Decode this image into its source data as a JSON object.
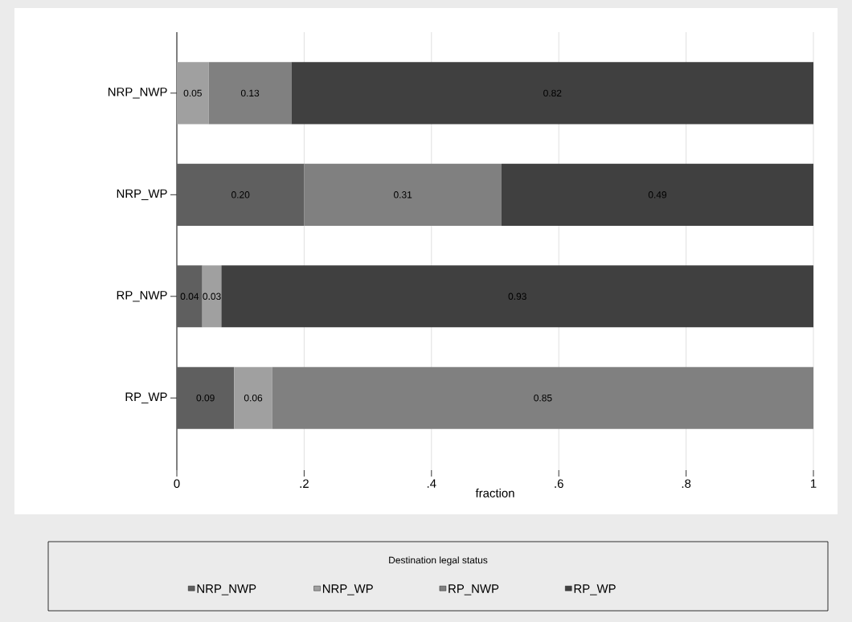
{
  "chart_data": {
    "type": "bar",
    "orientation": "horizontal",
    "stacked": true,
    "categories": [
      "NRP_NWP",
      "NRP_WP",
      "RP_NWP",
      "RP_WP"
    ],
    "series": [
      {
        "name": "NRP_NWP",
        "color": "#5f5f5f",
        "values": [
          null,
          0.2,
          0.04,
          0.09
        ],
        "value_labels": [
          null,
          "0.20",
          "0.04",
          "0.09"
        ]
      },
      {
        "name": "NRP_WP",
        "color": "#a0a0a0",
        "values": [
          0.05,
          null,
          0.03,
          0.06
        ],
        "value_labels": [
          "0.05",
          null,
          "0.03",
          "0.06"
        ]
      },
      {
        "name": "RP_NWP",
        "color": "#808080",
        "values": [
          0.13,
          0.31,
          null,
          0.85
        ],
        "value_labels": [
          "0.13",
          "0.31",
          null,
          "0.85"
        ]
      },
      {
        "name": "RP_WP",
        "color": "#404040",
        "values": [
          0.82,
          0.49,
          0.93,
          null
        ],
        "value_labels": [
          "0.82",
          "0.49",
          "0.93",
          null
        ]
      }
    ],
    "xlim": [
      0,
      1
    ],
    "xticks": [
      0,
      {
        "value": 0.2,
        "label": ".2"
      },
      {
        "value": 0.4,
        "label": ".4"
      },
      {
        "value": 0.6,
        "label": ".6"
      },
      {
        "value": 0.8,
        "label": ".8"
      },
      1
    ],
    "xlabel": "fraction",
    "legend_title": "Destination legal status",
    "legend": "bottom",
    "grid": "x"
  }
}
